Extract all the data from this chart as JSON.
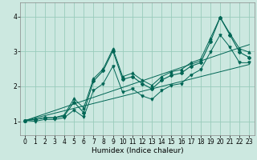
{
  "xlabel": "Humidex (Indice chaleur)",
  "ylabel": "",
  "bg_color": "#cce8e0",
  "line_color": "#006655",
  "grid_color": "#99ccbb",
  "xlim": [
    -0.5,
    23.5
  ],
  "ylim": [
    0.6,
    4.4
  ],
  "yticks": [
    1,
    2,
    3,
    4
  ],
  "xticks": [
    0,
    1,
    2,
    3,
    4,
    5,
    6,
    7,
    8,
    9,
    10,
    11,
    12,
    13,
    14,
    15,
    16,
    17,
    18,
    19,
    20,
    21,
    22,
    23
  ],
  "x_data": [
    0,
    1,
    2,
    3,
    4,
    5,
    6,
    7,
    8,
    9,
    10,
    11,
    12,
    13,
    14,
    15,
    16,
    17,
    18,
    19,
    20,
    21,
    22,
    23
  ],
  "y_main": [
    1.02,
    1.05,
    1.1,
    1.1,
    1.15,
    1.55,
    1.25,
    2.15,
    2.45,
    3.02,
    2.2,
    2.28,
    2.08,
    1.93,
    2.18,
    2.32,
    2.38,
    2.58,
    2.68,
    3.28,
    3.98,
    3.48,
    2.98,
    2.83
  ],
  "y_upper": [
    1.02,
    1.05,
    1.1,
    1.1,
    1.18,
    1.65,
    1.38,
    2.22,
    2.5,
    3.08,
    2.28,
    2.38,
    2.18,
    2.03,
    2.28,
    2.42,
    2.48,
    2.68,
    2.78,
    3.38,
    3.98,
    3.52,
    3.08,
    2.98
  ],
  "y_lower": [
    1.02,
    1.0,
    1.05,
    1.05,
    1.1,
    1.32,
    1.12,
    1.88,
    2.08,
    2.58,
    1.83,
    1.93,
    1.73,
    1.63,
    1.88,
    2.03,
    2.08,
    2.33,
    2.48,
    2.98,
    3.48,
    3.13,
    2.68,
    2.68
  ],
  "y_reg1": [
    1.02,
    1.115,
    1.21,
    1.305,
    1.4,
    1.495,
    1.59,
    1.685,
    1.78,
    1.875,
    1.97,
    2.065,
    2.16,
    2.255,
    2.35,
    2.445,
    2.54,
    2.635,
    2.73,
    2.825,
    2.92,
    3.015,
    3.11,
    3.2
  ],
  "y_reg2": [
    1.02,
    1.09,
    1.16,
    1.23,
    1.3,
    1.37,
    1.44,
    1.51,
    1.58,
    1.65,
    1.72,
    1.79,
    1.86,
    1.93,
    2.0,
    2.07,
    2.14,
    2.21,
    2.28,
    2.35,
    2.42,
    2.49,
    2.56,
    2.63
  ]
}
